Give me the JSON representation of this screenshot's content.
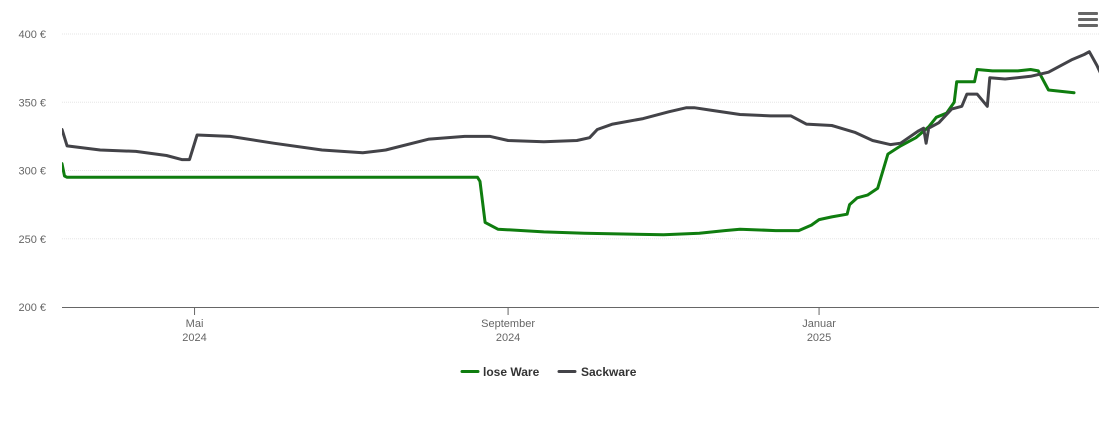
{
  "chart_data": {
    "type": "line",
    "title": "",
    "xlabel": "",
    "ylabel": "",
    "ylim": [
      200,
      400
    ],
    "yticks": [
      "200 €",
      "250 €",
      "300 €",
      "350 €",
      "400 €"
    ],
    "ytick_values": [
      200,
      250,
      300,
      350,
      400
    ],
    "xlim": [
      "2024-03-10",
      "2025-04-11"
    ],
    "xticks": [
      {
        "date": "2024-05-01",
        "month": "Mai",
        "year": "2024"
      },
      {
        "date": "2024-09-01",
        "month": "September",
        "year": "2024"
      },
      {
        "date": "2025-01-01",
        "month": "Januar",
        "year": "2025"
      }
    ],
    "grid": true,
    "legend": "bottom-center",
    "series": [
      {
        "name": "lose Ware",
        "color": "#0f7d0f",
        "points": [
          [
            "2024-03-10",
            305
          ],
          [
            "2024-03-11",
            296
          ],
          [
            "2024-03-12",
            295
          ],
          [
            "2024-05-15",
            295
          ],
          [
            "2024-07-01",
            295
          ],
          [
            "2024-08-01",
            295
          ],
          [
            "2024-08-20",
            295
          ],
          [
            "2024-08-21",
            292
          ],
          [
            "2024-08-23",
            262
          ],
          [
            "2024-08-28",
            257
          ],
          [
            "2024-09-15",
            255
          ],
          [
            "2024-10-01",
            254
          ],
          [
            "2024-11-01",
            253
          ],
          [
            "2024-11-15",
            254
          ],
          [
            "2024-11-25",
            256
          ],
          [
            "2024-12-01",
            257
          ],
          [
            "2024-12-15",
            256
          ],
          [
            "2024-12-24",
            256
          ],
          [
            "2024-12-29",
            260
          ],
          [
            "2025-01-01",
            264
          ],
          [
            "2025-01-06",
            266
          ],
          [
            "2025-01-12",
            268
          ],
          [
            "2025-01-13",
            275
          ],
          [
            "2025-01-16",
            280
          ],
          [
            "2025-01-20",
            282
          ],
          [
            "2025-01-24",
            287
          ],
          [
            "2025-01-28",
            312
          ],
          [
            "2025-02-02",
            318
          ],
          [
            "2025-02-08",
            324
          ],
          [
            "2025-02-13",
            332
          ],
          [
            "2025-02-16",
            339
          ],
          [
            "2025-02-20",
            342
          ],
          [
            "2025-02-23",
            350
          ],
          [
            "2025-02-24",
            365
          ],
          [
            "2025-03-01",
            365
          ],
          [
            "2025-03-03",
            365
          ],
          [
            "2025-03-04",
            374
          ],
          [
            "2025-03-10",
            373
          ],
          [
            "2025-03-20",
            373
          ],
          [
            "2025-03-25",
            374
          ],
          [
            "2025-03-28",
            373
          ],
          [
            "2025-04-01",
            359
          ],
          [
            "2025-04-11",
            357
          ]
        ]
      },
      {
        "name": "Sackware",
        "color": "#434348",
        "points": [
          [
            "2024-03-10",
            330
          ],
          [
            "2024-03-12",
            318
          ],
          [
            "2024-03-25",
            315
          ],
          [
            "2024-04-08",
            314
          ],
          [
            "2024-04-20",
            311
          ],
          [
            "2024-04-26",
            308
          ],
          [
            "2024-04-29",
            308
          ],
          [
            "2024-05-02",
            326
          ],
          [
            "2024-05-15",
            325
          ],
          [
            "2024-06-01",
            320
          ],
          [
            "2024-06-20",
            315
          ],
          [
            "2024-07-06",
            313
          ],
          [
            "2024-07-15",
            315
          ],
          [
            "2024-08-01",
            323
          ],
          [
            "2024-08-15",
            325
          ],
          [
            "2024-08-25",
            325
          ],
          [
            "2024-09-01",
            322
          ],
          [
            "2024-09-15",
            321
          ],
          [
            "2024-09-28",
            322
          ],
          [
            "2024-10-03",
            324
          ],
          [
            "2024-10-06",
            330
          ],
          [
            "2024-10-12",
            334
          ],
          [
            "2024-10-24",
            338
          ],
          [
            "2024-11-03",
            343
          ],
          [
            "2024-11-10",
            346
          ],
          [
            "2024-11-13",
            346
          ],
          [
            "2024-11-20",
            344
          ],
          [
            "2024-12-01",
            341
          ],
          [
            "2024-12-13",
            340
          ],
          [
            "2024-12-21",
            340
          ],
          [
            "2024-12-27",
            334
          ],
          [
            "2025-01-06",
            333
          ],
          [
            "2025-01-15",
            328
          ],
          [
            "2025-01-22",
            322
          ],
          [
            "2025-01-29",
            319
          ],
          [
            "2025-02-02",
            320
          ],
          [
            "2025-02-09",
            329
          ],
          [
            "2025-02-11",
            331
          ],
          [
            "2025-02-12",
            320
          ],
          [
            "2025-02-13",
            331
          ],
          [
            "2025-02-17",
            335
          ],
          [
            "2025-02-22",
            345
          ],
          [
            "2025-02-26",
            347
          ],
          [
            "2025-02-28",
            356
          ],
          [
            "2025-03-04",
            356
          ],
          [
            "2025-03-08",
            347
          ],
          [
            "2025-03-09",
            368
          ],
          [
            "2025-03-15",
            367
          ],
          [
            "2025-03-25",
            369
          ],
          [
            "2025-04-01",
            372
          ],
          [
            "2025-04-10",
            381
          ],
          [
            "2025-04-15",
            385
          ],
          [
            "2025-04-17",
            387
          ],
          [
            "2025-04-20",
            377
          ],
          [
            "2025-04-22",
            369
          ]
        ]
      }
    ]
  },
  "menu": {
    "icon": "hamburger-menu-icon"
  }
}
